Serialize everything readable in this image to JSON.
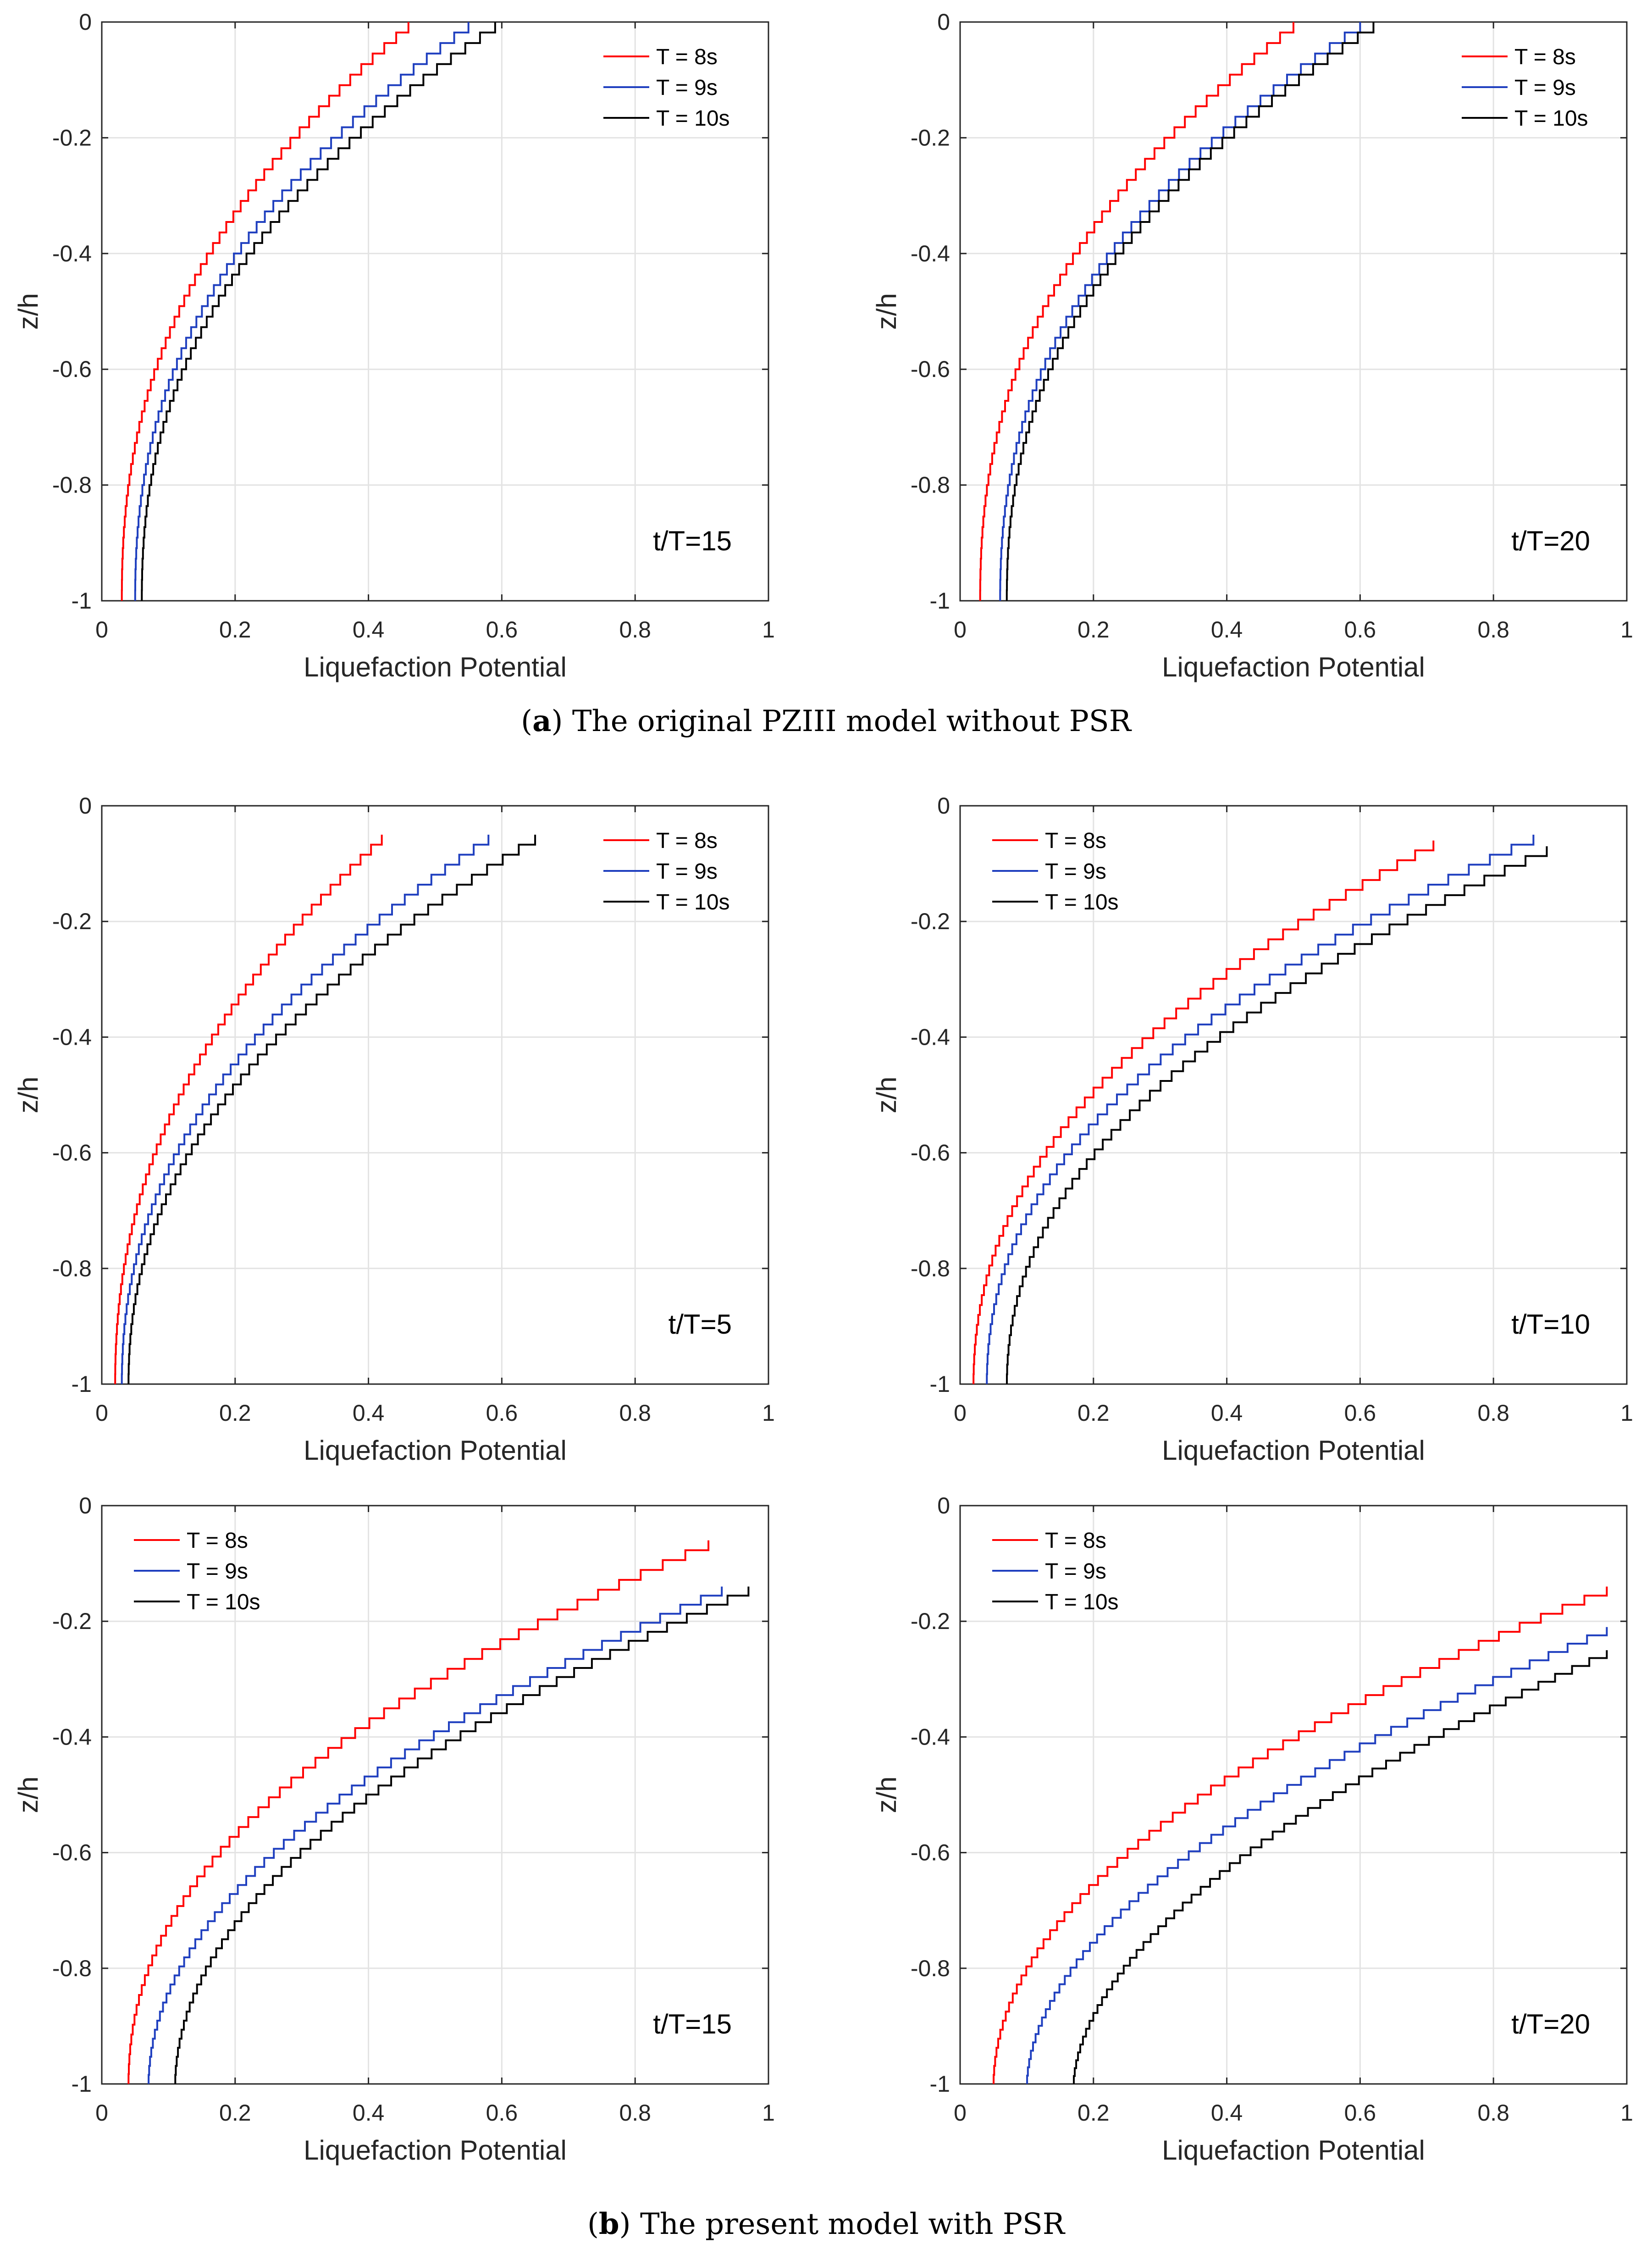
{
  "captions": {
    "a": {
      "letter": "a",
      "text": "The original PZIII model without PSR"
    },
    "b": {
      "letter": "b",
      "text": "The present model with PSR"
    }
  },
  "colors": {
    "T8": "#ff0000",
    "T9": "#1f3fbf",
    "T10": "#000000",
    "grid": "#e3e3e3",
    "axis": "#262626"
  },
  "chart_data": [
    {
      "type": "line",
      "panel": "a-left",
      "annotation": "t/T=15",
      "xlabel": "Liquefaction Potential",
      "ylabel": "z/h",
      "xlim": [
        0,
        1
      ],
      "ylim": [
        -1,
        0
      ],
      "xticks": [
        "0",
        "0.2",
        "0.4",
        "0.6",
        "0.8",
        "1"
      ],
      "yticks": [
        "-1",
        "-0.8",
        "-0.6",
        "-0.4",
        "-0.2",
        "0"
      ],
      "legend_position": "top-right",
      "series": [
        {
          "name": "T = 8s",
          "color": "#ff0000",
          "z_top": 0,
          "x_top": 0.46,
          "x_bottom": 0.03
        },
        {
          "name": "T = 9s",
          "color": "#1f3fbf",
          "z_top": 0,
          "x_top": 0.55,
          "x_bottom": 0.05
        },
        {
          "name": "T = 10s",
          "color": "#000000",
          "z_top": 0,
          "x_top": 0.59,
          "x_bottom": 0.06
        }
      ]
    },
    {
      "type": "line",
      "panel": "a-right",
      "annotation": "t/T=20",
      "xlabel": "Liquefaction Potential",
      "ylabel": "z/h",
      "xlim": [
        0,
        1
      ],
      "ylim": [
        -1,
        0
      ],
      "xticks": [
        "0",
        "0.2",
        "0.4",
        "0.6",
        "0.8",
        "1"
      ],
      "yticks": [
        "-1",
        "-0.8",
        "-0.6",
        "-0.4",
        "-0.2",
        "0"
      ],
      "legend_position": "top-right",
      "series": [
        {
          "name": "T = 8s",
          "color": "#ff0000",
          "z_top": 0,
          "x_top": 0.5,
          "x_bottom": 0.03
        },
        {
          "name": "T = 9s",
          "color": "#1f3fbf",
          "z_top": 0,
          "x_top": 0.6,
          "x_bottom": 0.06
        },
        {
          "name": "T = 10s",
          "color": "#000000",
          "z_top": 0,
          "x_top": 0.62,
          "x_bottom": 0.07
        }
      ]
    },
    {
      "type": "line",
      "panel": "b-top-left",
      "annotation": "t/T=5",
      "xlabel": "Liquefaction Potential",
      "ylabel": "z/h",
      "xlim": [
        0,
        1
      ],
      "ylim": [
        -1,
        0
      ],
      "xticks": [
        "0",
        "0.2",
        "0.4",
        "0.6",
        "0.8",
        "1"
      ],
      "yticks": [
        "-1",
        "-0.8",
        "-0.6",
        "-0.4",
        "-0.2",
        "0"
      ],
      "legend_position": "top-right",
      "series": [
        {
          "name": "T = 8s",
          "color": "#ff0000",
          "z_top": -0.05,
          "x_top": 0.42,
          "x_bottom": 0.02
        },
        {
          "name": "T = 9s",
          "color": "#1f3fbf",
          "z_top": -0.05,
          "x_top": 0.58,
          "x_bottom": 0.03
        },
        {
          "name": "T = 10s",
          "color": "#000000",
          "z_top": -0.05,
          "x_top": 0.65,
          "x_bottom": 0.04
        }
      ]
    },
    {
      "type": "line",
      "panel": "b-top-right",
      "annotation": "t/T=10",
      "xlabel": "Liquefaction Potential",
      "ylabel": "z/h",
      "xlim": [
        0,
        1
      ],
      "ylim": [
        -1,
        0
      ],
      "xticks": [
        "0",
        "0.2",
        "0.4",
        "0.6",
        "0.8",
        "1"
      ],
      "yticks": [
        "-1",
        "-0.8",
        "-0.6",
        "-0.4",
        "-0.2",
        "0"
      ],
      "legend_position": "top-left",
      "series": [
        {
          "name": "T = 8s",
          "color": "#ff0000",
          "z_top": -0.06,
          "x_top": 0.71,
          "x_bottom": 0.02
        },
        {
          "name": "T = 9s",
          "color": "#1f3fbf",
          "z_top": -0.05,
          "x_top": 0.86,
          "x_bottom": 0.04
        },
        {
          "name": "T = 10s",
          "color": "#000000",
          "z_top": -0.07,
          "x_top": 0.88,
          "x_bottom": 0.07
        }
      ]
    },
    {
      "type": "line",
      "panel": "b-bottom-left",
      "annotation": "t/T=15",
      "xlabel": "Liquefaction Potential",
      "ylabel": "z/h",
      "xlim": [
        0,
        1
      ],
      "ylim": [
        -1,
        0
      ],
      "xticks": [
        "0",
        "0.2",
        "0.4",
        "0.6",
        "0.8",
        "1"
      ],
      "yticks": [
        "-1",
        "-0.8",
        "-0.6",
        "-0.4",
        "-0.2",
        "0"
      ],
      "legend_position": "top-left",
      "series": [
        {
          "name": "T = 8s",
          "color": "#ff0000",
          "z_top": -0.06,
          "x_top": 0.91,
          "x_bottom": 0.04
        },
        {
          "name": "T = 9s",
          "color": "#1f3fbf",
          "z_top": -0.14,
          "x_top": 0.93,
          "x_bottom": 0.07
        },
        {
          "name": "T = 10s",
          "color": "#000000",
          "z_top": -0.14,
          "x_top": 0.97,
          "x_bottom": 0.11
        }
      ]
    },
    {
      "type": "line",
      "panel": "b-bottom-right",
      "annotation": "t/T=20",
      "xlabel": "Liquefaction Potential",
      "ylabel": "z/h",
      "xlim": [
        0,
        1
      ],
      "ylim": [
        -1,
        0
      ],
      "xticks": [
        "0",
        "0.2",
        "0.4",
        "0.6",
        "0.8",
        "1"
      ],
      "yticks": [
        "-1",
        "-0.8",
        "-0.6",
        "-0.4",
        "-0.2",
        "0"
      ],
      "legend_position": "top-left",
      "series": [
        {
          "name": "T = 8s",
          "color": "#ff0000",
          "z_top": -0.14,
          "x_top": 0.97,
          "x_bottom": 0.05
        },
        {
          "name": "T = 9s",
          "color": "#1f3fbf",
          "z_top": -0.21,
          "x_top": 0.97,
          "x_bottom": 0.1
        },
        {
          "name": "T = 10s",
          "color": "#000000",
          "z_top": -0.25,
          "x_top": 0.97,
          "x_bottom": 0.17
        }
      ]
    }
  ]
}
